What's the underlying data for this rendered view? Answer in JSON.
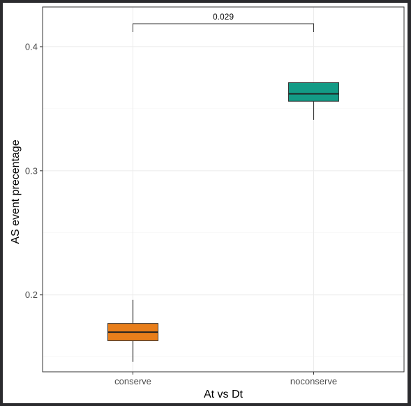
{
  "chart_data": {
    "type": "box",
    "title": "",
    "xlabel": "At vs Dt",
    "ylabel": "AS event precentage",
    "ylim": [
      0.138,
      0.432
    ],
    "yticks": [
      0.2,
      0.3,
      0.4
    ],
    "ytick_labels": [
      "0.2",
      "0.3",
      "0.4"
    ],
    "grid": true,
    "legend": "none",
    "categories": [
      "conserve",
      "noconserve"
    ],
    "boxes": [
      {
        "category": "conserve",
        "color": "#E87E1B",
        "whisker_low": 0.146,
        "q1": 0.163,
        "median": 0.17,
        "q3": 0.177,
        "whisker_high": 0.196
      },
      {
        "category": "noconserve",
        "color": "#139B86",
        "whisker_low": 0.341,
        "q1": 0.356,
        "median": 0.362,
        "q3": 0.371,
        "whisker_high": 0.371
      }
    ],
    "annotations": [
      {
        "text": "0.029",
        "from": "conserve",
        "to": "noconserve"
      }
    ]
  }
}
